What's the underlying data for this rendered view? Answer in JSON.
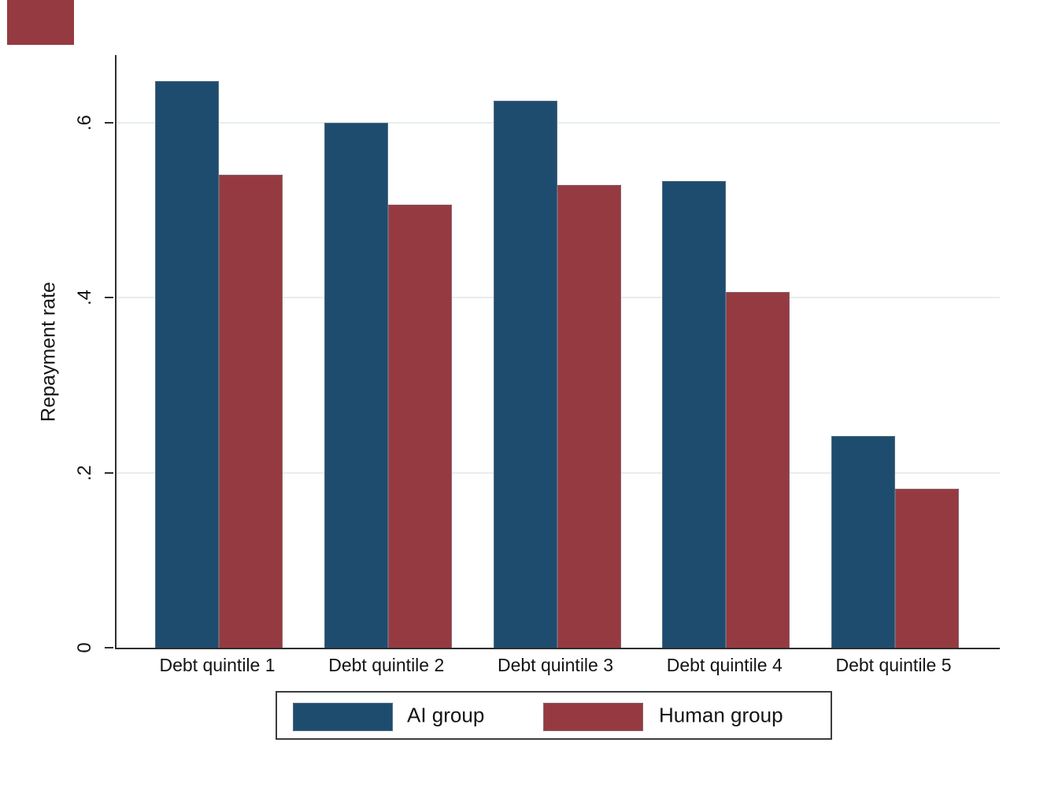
{
  "figure": {
    "ylabel": "Repayment rate"
  },
  "colors": {
    "ai_blue": "#1e4c6f",
    "human_maroon": "#953a41",
    "gridline": "#e7eded",
    "axis": "#2e2e2e",
    "patch": "#963a41"
  },
  "chart_data": {
    "type": "bar",
    "title": "",
    "xlabel": "",
    "ylabel": "Repayment rate",
    "categories": [
      "Debt quintile 1",
      "Debt quintile 2",
      "Debt quintile 3",
      "Debt quintile 4",
      "Debt quintile 5"
    ],
    "series": [
      {
        "name": "AI group",
        "color": "#1e4c6f",
        "values": [
          0.648,
          0.6,
          0.625,
          0.533,
          0.242
        ]
      },
      {
        "name": "Human group",
        "color": "#953a41",
        "values": [
          0.541,
          0.506,
          0.529,
          0.407,
          0.182
        ]
      }
    ],
    "ylim": [
      0,
      0.68
    ],
    "yticks": [
      {
        "label": "0",
        "value": 0
      },
      {
        "label": ".2",
        "value": 0.2
      },
      {
        "label": ".4",
        "value": 0.4
      },
      {
        "label": ".6",
        "value": 0.6
      }
    ],
    "grid": true,
    "legend_position": "bottom"
  }
}
